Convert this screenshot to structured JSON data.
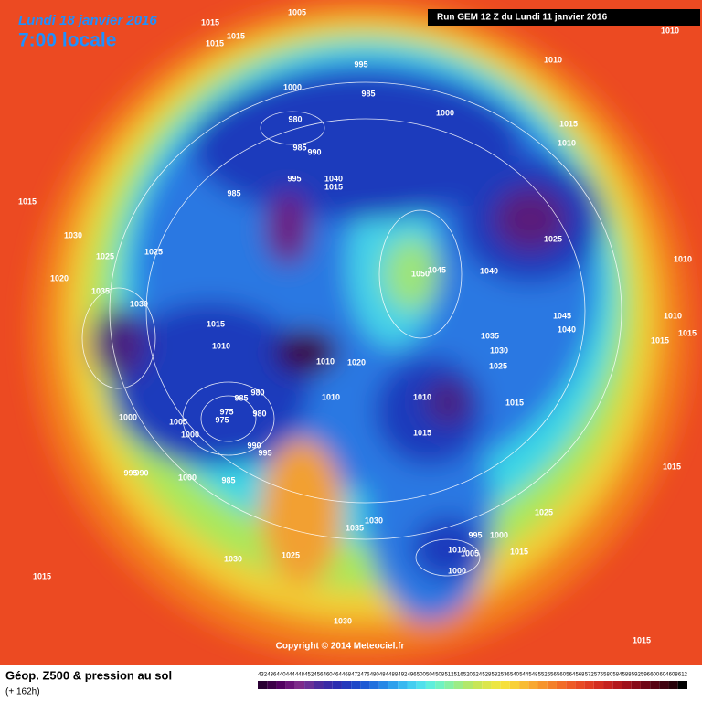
{
  "header": {
    "date": "Lundi 18 janvier 2016",
    "time": "7:00 locale",
    "run": "Run GEM 12 Z du Lundi 11 janvier 2016"
  },
  "copyright": "Copyright © 2014 Meteociel.fr",
  "footer": {
    "title": "Géop. Z500 & pression au sol",
    "lead": "(+ 162h)"
  },
  "legend": {
    "labels": [
      432,
      436,
      440,
      444,
      448,
      452,
      456,
      460,
      464,
      468,
      472,
      476,
      480,
      484,
      488,
      492,
      496,
      500,
      504,
      508,
      512,
      516,
      520,
      524,
      528,
      532,
      536,
      540,
      544,
      548,
      552,
      556,
      560,
      564,
      568,
      572,
      576,
      580,
      584,
      588,
      592,
      596,
      600,
      604,
      608,
      612
    ],
    "colors": [
      "#2a0033",
      "#3d0048",
      "#520060",
      "#6a1278",
      "#7e2a8a",
      "#6a2f96",
      "#4d2a9c",
      "#3a2aa6",
      "#2c2cb0",
      "#2438bc",
      "#1f48c8",
      "#1e5ad4",
      "#2070de",
      "#2688e6",
      "#2ea0ec",
      "#38b8f0",
      "#44cef0",
      "#50e0ec",
      "#5eeedc",
      "#70f2c2",
      "#86f0a4",
      "#9cec86",
      "#b2e86a",
      "#c8e656",
      "#dce64a",
      "#ece642",
      "#f6e03c",
      "#f8d038",
      "#f8bc34",
      "#f8a830",
      "#f6942c",
      "#f4802a",
      "#f26c28",
      "#ee5a26",
      "#e84a24",
      "#e03c22",
      "#d42e20",
      "#c6221e",
      "#b4181c",
      "#a0101a",
      "#880a18",
      "#700616",
      "#580414",
      "#400210",
      "#28010a",
      "#000000"
    ]
  },
  "isobars": [
    "1015",
    "1005",
    "1015",
    "1015",
    "995",
    "1000",
    "985",
    "1000",
    "980",
    "985",
    "990",
    "995",
    "1040",
    "1015",
    "985",
    "1010",
    "1010",
    "1015",
    "1010",
    "1015",
    "1030",
    "1025",
    "1025",
    "1025",
    "1045",
    "1050",
    "1040",
    "1020",
    "1035",
    "1030",
    "1015",
    "1010",
    "1045",
    "1040",
    "1035",
    "1030",
    "1025",
    "1010",
    "1010",
    "1015",
    "1015",
    "1010",
    "1020",
    "1010",
    "985",
    "980",
    "975",
    "975",
    "980",
    "1005",
    "1000",
    "1000",
    "990",
    "995",
    "1010",
    "1015",
    "1015",
    "995",
    "990",
    "1000",
    "985",
    "1030",
    "1035",
    "1025",
    "995",
    "1000",
    "1010",
    "1005",
    "1000",
    "1015",
    "1015",
    "1030",
    "1025",
    "1015",
    "1030",
    "1015"
  ]
}
